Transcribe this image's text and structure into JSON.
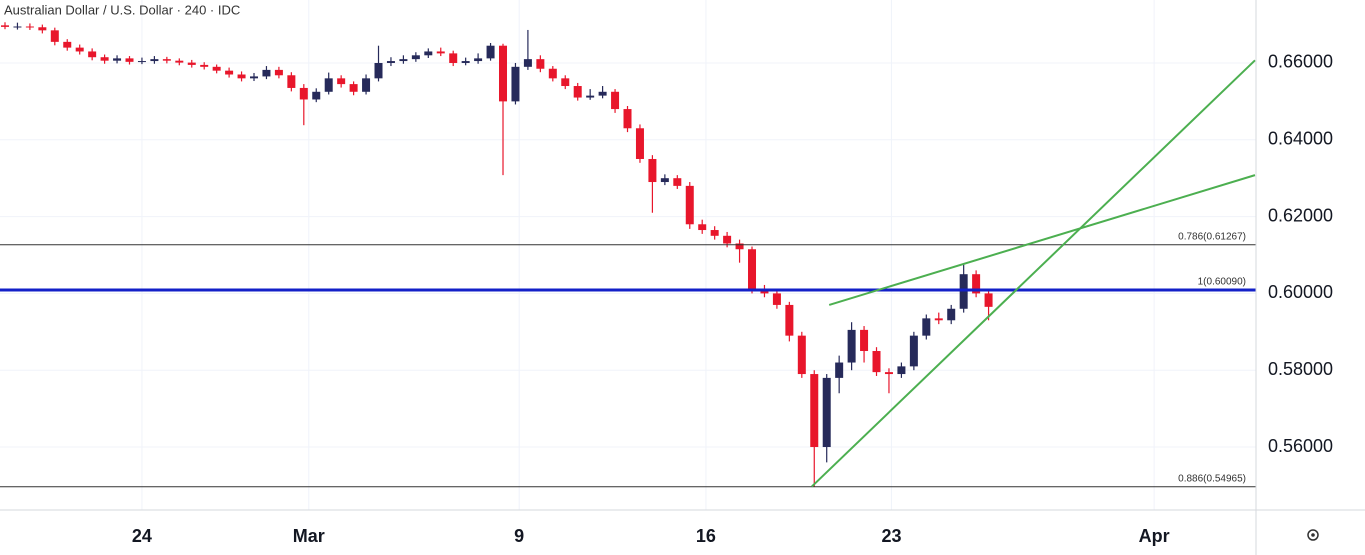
{
  "chart_data": {
    "type": "candlestick",
    "title": "Australian Dollar / U.S. Dollar · 240 · IDC",
    "up_color": "#262a5a",
    "down_color": "#e8162b",
    "grid": true,
    "xlim": [
      0,
      100.4
    ],
    "ylim": [
      0.5436,
      0.6764
    ],
    "xticks": [
      {
        "value": 11,
        "label": "24"
      },
      {
        "value": 24.4,
        "label": "Mar"
      },
      {
        "value": 41.3,
        "label": "9"
      },
      {
        "value": 56.3,
        "label": "16"
      },
      {
        "value": 71.2,
        "label": "23"
      },
      {
        "value": 92.3,
        "label": "Apr"
      }
    ],
    "yticks": [
      {
        "value": 0.56,
        "label": "0.56000"
      },
      {
        "value": 0.58,
        "label": "0.58000"
      },
      {
        "value": 0.6,
        "label": "0.60000"
      },
      {
        "value": 0.62,
        "label": "0.62000"
      },
      {
        "value": 0.64,
        "label": "0.64000"
      },
      {
        "value": 0.66,
        "label": "0.66000"
      }
    ],
    "open": [
      0.6698,
      0.6694,
      0.6695,
      0.6693,
      0.6685,
      0.6655,
      0.664,
      0.663,
      0.6615,
      0.6606,
      0.6612,
      0.6603,
      0.6605,
      0.661,
      0.6606,
      0.6601,
      0.6595,
      0.659,
      0.658,
      0.657,
      0.656,
      0.6565,
      0.6582,
      0.6568,
      0.6535,
      0.6505,
      0.6525,
      0.656,
      0.6545,
      0.6525,
      0.656,
      0.66,
      0.6605,
      0.661,
      0.662,
      0.663,
      0.6625,
      0.66,
      0.6605,
      0.6612,
      0.6645,
      0.65,
      0.659,
      0.661,
      0.6585,
      0.656,
      0.654,
      0.651,
      0.6515,
      0.6525,
      0.648,
      0.643,
      0.635,
      0.629,
      0.63,
      0.628,
      0.618,
      0.6165,
      0.615,
      0.613,
      0.6115,
      0.601,
      0.6,
      0.597,
      0.589,
      0.579,
      0.56,
      0.578,
      0.582,
      0.5905,
      0.585,
      0.5795,
      0.579,
      0.581,
      0.589,
      0.5935,
      0.593,
      0.596,
      0.605,
      0.6
    ],
    "high": [
      0.6706,
      0.6705,
      0.6703,
      0.67,
      0.6692,
      0.6662,
      0.6648,
      0.6638,
      0.6622,
      0.662,
      0.6618,
      0.6614,
      0.6618,
      0.6616,
      0.6612,
      0.6608,
      0.6602,
      0.6596,
      0.6588,
      0.6578,
      0.6574,
      0.6592,
      0.659,
      0.6576,
      0.6545,
      0.6534,
      0.6575,
      0.6568,
      0.6552,
      0.657,
      0.6645,
      0.6615,
      0.662,
      0.6628,
      0.6638,
      0.664,
      0.6632,
      0.6614,
      0.6625,
      0.6652,
      0.665,
      0.66,
      0.6686,
      0.662,
      0.6592,
      0.6568,
      0.6548,
      0.6532,
      0.654,
      0.6532,
      0.6488,
      0.644,
      0.636,
      0.631,
      0.6308,
      0.629,
      0.6192,
      0.6175,
      0.616,
      0.614,
      0.6122,
      0.6022,
      0.601,
      0.5978,
      0.59,
      0.58,
      0.579,
      0.5838,
      0.5925,
      0.5915,
      0.586,
      0.5805,
      0.582,
      0.59,
      0.5945,
      0.595,
      0.597,
      0.6075,
      0.606,
      0.6005
    ],
    "low": [
      0.6688,
      0.6687,
      0.6686,
      0.6677,
      0.6646,
      0.6632,
      0.6622,
      0.6607,
      0.6598,
      0.6599,
      0.6596,
      0.6597,
      0.6598,
      0.6599,
      0.6594,
      0.6588,
      0.6583,
      0.6573,
      0.6562,
      0.6552,
      0.6553,
      0.6558,
      0.656,
      0.6526,
      0.6438,
      0.6498,
      0.6518,
      0.6536,
      0.6516,
      0.6518,
      0.6552,
      0.6592,
      0.6598,
      0.6603,
      0.6613,
      0.6618,
      0.6592,
      0.6594,
      0.6598,
      0.6606,
      0.6308,
      0.6492,
      0.6582,
      0.6576,
      0.6552,
      0.6532,
      0.6502,
      0.6504,
      0.6508,
      0.647,
      0.642,
      0.634,
      0.621,
      0.6282,
      0.6272,
      0.6168,
      0.6155,
      0.614,
      0.612,
      0.608,
      0.6,
      0.599,
      0.596,
      0.5875,
      0.578,
      0.5497,
      0.556,
      0.574,
      0.58,
      0.582,
      0.5785,
      0.574,
      0.578,
      0.58,
      0.588,
      0.592,
      0.592,
      0.595,
      0.599,
      0.593
    ],
    "close": [
      0.6694,
      0.6695,
      0.6693,
      0.6685,
      0.6655,
      0.664,
      0.663,
      0.6615,
      0.6606,
      0.6612,
      0.6603,
      0.6605,
      0.661,
      0.6606,
      0.6601,
      0.6595,
      0.659,
      0.658,
      0.657,
      0.656,
      0.6565,
      0.6582,
      0.6568,
      0.6535,
      0.6505,
      0.6525,
      0.656,
      0.6545,
      0.6525,
      0.656,
      0.66,
      0.6605,
      0.661,
      0.662,
      0.663,
      0.6625,
      0.66,
      0.6605,
      0.6612,
      0.6645,
      0.65,
      0.659,
      0.661,
      0.6585,
      0.656,
      0.654,
      0.651,
      0.6515,
      0.6525,
      0.648,
      0.643,
      0.635,
      0.629,
      0.63,
      0.628,
      0.618,
      0.6165,
      0.615,
      0.613,
      0.6115,
      0.601,
      0.6,
      0.597,
      0.589,
      0.579,
      0.56,
      0.578,
      0.582,
      0.5905,
      0.585,
      0.5795,
      0.579,
      0.581,
      0.589,
      0.5935,
      0.593,
      0.596,
      0.605,
      0.6,
      0.5965
    ],
    "levels": [
      {
        "value": 0.61267,
        "label": "0.786(0.61267)",
        "color": "#333333",
        "width": 1
      },
      {
        "value": 0.6009,
        "label": "1(0.60090)",
        "color": "#1320c8",
        "width": 3
      },
      {
        "value": 0.54965,
        "label": "0.886(0.54965)",
        "color": "#333333",
        "width": 1
      }
    ],
    "trendlines": [
      {
        "x": [
          64.8,
          100.4
        ],
        "y": [
          0.5497,
          0.6607
        ],
        "color": "#4caf50"
      },
      {
        "x": [
          66.2,
          100.4
        ],
        "y": [
          0.597,
          0.6308
        ],
        "color": "#4caf50"
      }
    ]
  }
}
